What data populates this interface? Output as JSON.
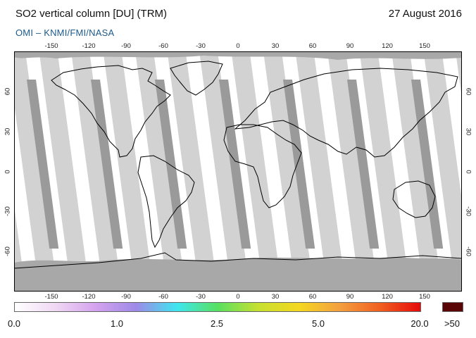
{
  "header": {
    "title": "SO2 vertical column [DU] (TRM)",
    "date": "27 August 2016",
    "source": "OMI  –  KNMI/FMI/NASA"
  },
  "map": {
    "lon_ticks": [
      -150,
      -120,
      -90,
      -60,
      -30,
      0,
      30,
      60,
      90,
      120,
      150
    ],
    "lat_ticks": [
      60,
      30,
      0,
      -30,
      -60
    ],
    "colors": {
      "ocean_background": "#ffffff",
      "orbit_gap_gray": "#9a9a9a",
      "orbit_light_gray": "#d2d2d2",
      "polar_cap_gray": "#a8a8a8",
      "coastline": "#000000"
    }
  },
  "colorbar": {
    "labels": [
      "0.0",
      "1.0",
      "2.5",
      "5.0",
      "20.0",
      ">50"
    ],
    "stops": [
      "#ffffff",
      "#f0d8f4",
      "#d4a2ee",
      "#9d8ae8",
      "#3fe6f0",
      "#58e060",
      "#c6e030",
      "#f4d820",
      "#f4a040",
      "#f06020",
      "#e60a0a"
    ],
    "overflow_color": "#5a0505"
  }
}
